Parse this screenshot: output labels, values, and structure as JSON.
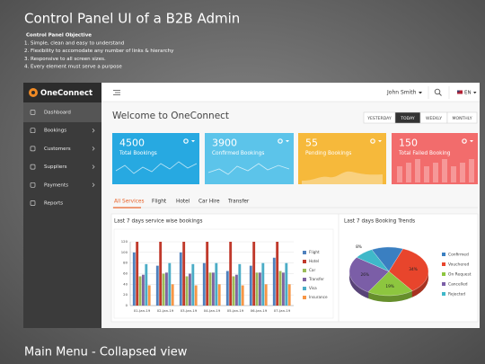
{
  "header": {
    "title": "Control Panel UI of a B2B Admin",
    "objective_heading": "Control Panel Objective",
    "objectives": [
      "1. Simple, clean and easy to understand",
      "2. Flexibility to accomodate any number of links & hierarchy",
      "3. Responsive to all screen sizes.",
      "4. Every element must serve a purpose"
    ]
  },
  "app": {
    "logo": "OneConnect",
    "menu": [
      "Dashboard",
      "Bookings",
      "Customers",
      "Suppliers",
      "Payments",
      "Reports"
    ],
    "user": "John Smith",
    "language": "EN",
    "welcome": "Welcome to OneConnect",
    "periods": [
      "YESTERDAY",
      "TODAY",
      "WEEKLY",
      "MONTHLY"
    ],
    "cards": [
      {
        "value": 4500,
        "label": "Total Bookings",
        "color": "#27a9e1"
      },
      {
        "value": 3900,
        "label": "Confirmed Bookings",
        "color": "#5cc4ea"
      },
      {
        "value": 55,
        "label": "Pending Bookings",
        "color": "#f6b93b"
      },
      {
        "value": 150,
        "label": "Total Failed Booking",
        "color": "#f26c6c"
      }
    ],
    "tabs": [
      "All Services",
      "Flight",
      "Hotel",
      "Car Hire",
      "Transfer"
    ]
  },
  "chart_data": [
    {
      "type": "bar",
      "title": "Last 7 days service wise bookings",
      "categories": [
        "01-Jan-19",
        "02-Jan-19",
        "03-Jan-19",
        "04-Jan-19",
        "05-Jan-19",
        "06-Jan-19",
        "07-Jan-19"
      ],
      "series": [
        {
          "name": "Flight",
          "color": "#4f81bd",
          "values": [
            100,
            75,
            100,
            80,
            65,
            75,
            90
          ]
        },
        {
          "name": "Hotel",
          "color": "#c0392b",
          "values": [
            120,
            120,
            120,
            120,
            120,
            120,
            120
          ]
        },
        {
          "name": "Car",
          "color": "#9bbb59",
          "values": [
            55,
            60,
            55,
            62,
            55,
            62,
            65
          ]
        },
        {
          "name": "Transfer",
          "color": "#8064a2",
          "values": [
            58,
            62,
            60,
            62,
            58,
            62,
            62
          ]
        },
        {
          "name": "Visa",
          "color": "#4bacc6",
          "values": [
            78,
            80,
            78,
            80,
            78,
            80,
            80
          ]
        },
        {
          "name": "Insurance",
          "color": "#f79646",
          "values": [
            38,
            40,
            38,
            40,
            38,
            40,
            40
          ]
        }
      ],
      "ylim": [
        0,
        120
      ],
      "yticks": [
        0,
        20,
        40,
        60,
        80,
        100,
        120
      ],
      "grid": true
    },
    {
      "type": "pie",
      "title": "Last 7 days Booking Trends",
      "categories": [
        "Confirmed",
        "Vouchered",
        "On Request",
        "Cancelled",
        "Rejected"
      ],
      "values": [
        13,
        34,
        19,
        26,
        8
      ],
      "value_labels": [
        null,
        "34%",
        "19%",
        "26%",
        "8%"
      ],
      "colors": [
        "#3a7fc1",
        "#e8452c",
        "#8dc63f",
        "#7b5ea7",
        "#3fb8c9"
      ]
    }
  ],
  "footer": "Main Menu - Collapsed view"
}
